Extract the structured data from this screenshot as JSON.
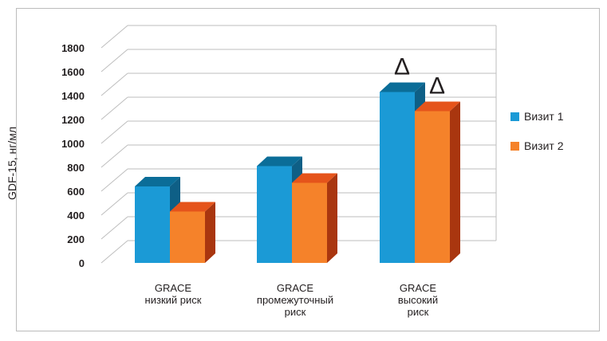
{
  "chart_data": {
    "type": "bar",
    "title": "",
    "xlabel": "",
    "ylabel": "GDF-15, нг/мл",
    "ylim": [
      0,
      1800
    ],
    "yticks": [
      0,
      200,
      400,
      600,
      800,
      1000,
      1200,
      1400,
      1600,
      1800
    ],
    "grid": true,
    "legend_position": "right",
    "categories": [
      [
        "GRACE",
        "низкий риск"
      ],
      [
        "GRACE",
        "промежуточный",
        "риск"
      ],
      [
        "GRACE",
        "высокий",
        "риск"
      ]
    ],
    "series": [
      {
        "name": "Визит 1",
        "values": [
          640,
          810,
          1430
        ],
        "color": "#1b9ad6",
        "top_color": "#0b6d98",
        "side_color": "#0e5f86"
      },
      {
        "name": "Визит 2",
        "values": [
          430,
          670,
          1270
        ],
        "color": "#f5822a",
        "top_color": "#e5541b",
        "side_color": "#a9360f"
      }
    ],
    "annotations": [
      {
        "category_index": 2,
        "series_index": 0,
        "text": "Δ"
      },
      {
        "category_index": 2,
        "series_index": 1,
        "text": "Δ"
      }
    ]
  }
}
